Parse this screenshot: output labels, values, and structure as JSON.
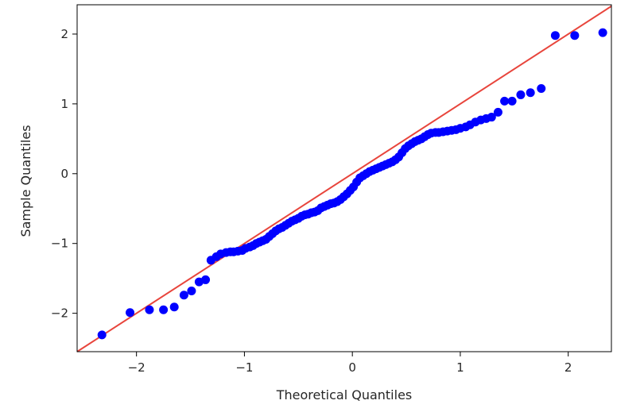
{
  "chart_data": {
    "type": "scatter",
    "title": "",
    "xlabel": "Theoretical Quantiles",
    "ylabel": "Sample Quantiles",
    "xlim": [
      -2.55,
      2.4
    ],
    "ylim": [
      -2.55,
      2.42
    ],
    "x_ticks": [
      -2,
      -1,
      0,
      1,
      2
    ],
    "y_ticks": [
      -2,
      -1,
      0,
      1,
      2
    ],
    "x_tick_labels": [
      "−2",
      "−1",
      "0",
      "1",
      "2"
    ],
    "y_tick_labels": [
      "−2",
      "−1",
      "0",
      "1",
      "2"
    ],
    "grid": false,
    "legend": "none",
    "colors": {
      "points": "#0000ff",
      "line": "#e8453c"
    },
    "reference_line": {
      "slope": 1,
      "intercept": 0
    },
    "points": [
      [
        -2.32,
        -2.31
      ],
      [
        -2.06,
        -1.99
      ],
      [
        -1.88,
        -1.95
      ],
      [
        -1.75,
        -1.95
      ],
      [
        -1.65,
        -1.91
      ],
      [
        -1.56,
        -1.74
      ],
      [
        -1.49,
        -1.68
      ],
      [
        -1.42,
        -1.55
      ],
      [
        -1.36,
        -1.52
      ],
      [
        -1.31,
        -1.24
      ],
      [
        -1.26,
        -1.19
      ],
      [
        -1.22,
        -1.15
      ],
      [
        -1.17,
        -1.13
      ],
      [
        -1.13,
        -1.12
      ],
      [
        -1.1,
        -1.12
      ],
      [
        -1.06,
        -1.11
      ],
      [
        -1.02,
        -1.1
      ],
      [
        -0.99,
        -1.07
      ],
      [
        -0.95,
        -1.05
      ],
      [
        -0.92,
        -1.03
      ],
      [
        -0.89,
        -1.0
      ],
      [
        -0.86,
        -0.98
      ],
      [
        -0.83,
        -0.96
      ],
      [
        -0.8,
        -0.94
      ],
      [
        -0.77,
        -0.9
      ],
      [
        -0.74,
        -0.86
      ],
      [
        -0.71,
        -0.82
      ],
      [
        -0.68,
        -0.79
      ],
      [
        -0.65,
        -0.77
      ],
      [
        -0.62,
        -0.74
      ],
      [
        -0.59,
        -0.71
      ],
      [
        -0.56,
        -0.68
      ],
      [
        -0.53,
        -0.66
      ],
      [
        -0.5,
        -0.64
      ],
      [
        -0.47,
        -0.61
      ],
      [
        -0.44,
        -0.59
      ],
      [
        -0.41,
        -0.58
      ],
      [
        -0.38,
        -0.56
      ],
      [
        -0.35,
        -0.55
      ],
      [
        -0.32,
        -0.53
      ],
      [
        -0.29,
        -0.49
      ],
      [
        -0.26,
        -0.47
      ],
      [
        -0.23,
        -0.45
      ],
      [
        -0.2,
        -0.43
      ],
      [
        -0.17,
        -0.42
      ],
      [
        -0.14,
        -0.4
      ],
      [
        -0.11,
        -0.37
      ],
      [
        -0.08,
        -0.33
      ],
      [
        -0.05,
        -0.29
      ],
      [
        -0.02,
        -0.24
      ],
      [
        0.01,
        -0.19
      ],
      [
        0.04,
        -0.12
      ],
      [
        0.07,
        -0.06
      ],
      [
        0.1,
        -0.03
      ],
      [
        0.13,
        0.0
      ],
      [
        0.16,
        0.03
      ],
      [
        0.19,
        0.05
      ],
      [
        0.22,
        0.07
      ],
      [
        0.25,
        0.09
      ],
      [
        0.28,
        0.11
      ],
      [
        0.31,
        0.13
      ],
      [
        0.34,
        0.15
      ],
      [
        0.37,
        0.17
      ],
      [
        0.4,
        0.2
      ],
      [
        0.43,
        0.24
      ],
      [
        0.46,
        0.3
      ],
      [
        0.49,
        0.36
      ],
      [
        0.52,
        0.4
      ],
      [
        0.55,
        0.43
      ],
      [
        0.58,
        0.46
      ],
      [
        0.61,
        0.48
      ],
      [
        0.64,
        0.5
      ],
      [
        0.67,
        0.53
      ],
      [
        0.7,
        0.56
      ],
      [
        0.73,
        0.58
      ],
      [
        0.77,
        0.59
      ],
      [
        0.8,
        0.59
      ],
      [
        0.84,
        0.6
      ],
      [
        0.88,
        0.61
      ],
      [
        0.92,
        0.62
      ],
      [
        0.96,
        0.63
      ],
      [
        1.0,
        0.65
      ],
      [
        1.05,
        0.67
      ],
      [
        1.09,
        0.7
      ],
      [
        1.14,
        0.74
      ],
      [
        1.19,
        0.77
      ],
      [
        1.24,
        0.79
      ],
      [
        1.29,
        0.81
      ],
      [
        1.35,
        0.88
      ],
      [
        1.41,
        1.04
      ],
      [
        1.48,
        1.04
      ],
      [
        1.56,
        1.13
      ],
      [
        1.65,
        1.16
      ],
      [
        1.75,
        1.22
      ],
      [
        1.88,
        1.98
      ],
      [
        2.06,
        1.98
      ],
      [
        2.32,
        2.02
      ]
    ]
  }
}
